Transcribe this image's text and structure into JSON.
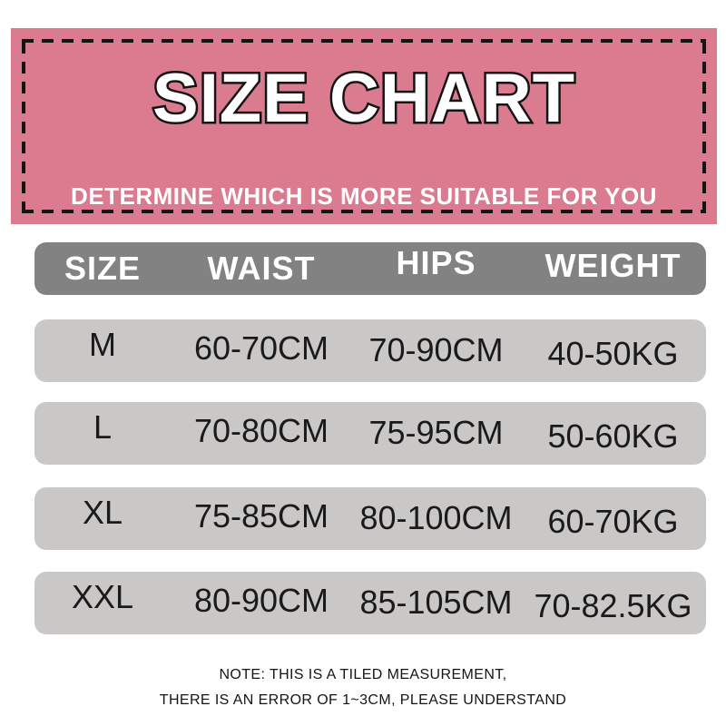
{
  "banner": {
    "title": "SIZE CHART",
    "subtitle": "DETERMINE WHICH IS MORE SUITABLE FOR YOU"
  },
  "chart_data": {
    "type": "table",
    "title": "SIZE CHART",
    "columns": [
      "SIZE",
      "WAIST",
      "HIPS",
      "WEIGHT"
    ],
    "rows": [
      [
        "M",
        "60-70CM",
        "70-90CM",
        "40-50KG"
      ],
      [
        "L",
        "70-80CM",
        "75-95CM",
        "50-60KG"
      ],
      [
        "XL",
        "75-85CM",
        "80-100CM",
        "60-70KG"
      ],
      [
        "XXL",
        "80-90CM",
        "85-105CM",
        "70-82.5KG"
      ]
    ]
  },
  "note": {
    "line1": "NOTE: THIS IS A TILED MEASUREMENT,",
    "line2": "THERE IS AN ERROR OF 1~3CM, PLEASE UNDERSTAND"
  },
  "colors": {
    "banner_bg": "#db7b90",
    "banner_dash": "#141414",
    "title_fill": "#ffffff",
    "title_outline": "#141414",
    "subtitle_text": "#ffffff",
    "header_row_bg": "#828282",
    "header_row_text": "#ffffff",
    "data_row_bg": "#cac7c7",
    "data_row_text": "#1a1a1a",
    "note_text": "#141414"
  }
}
